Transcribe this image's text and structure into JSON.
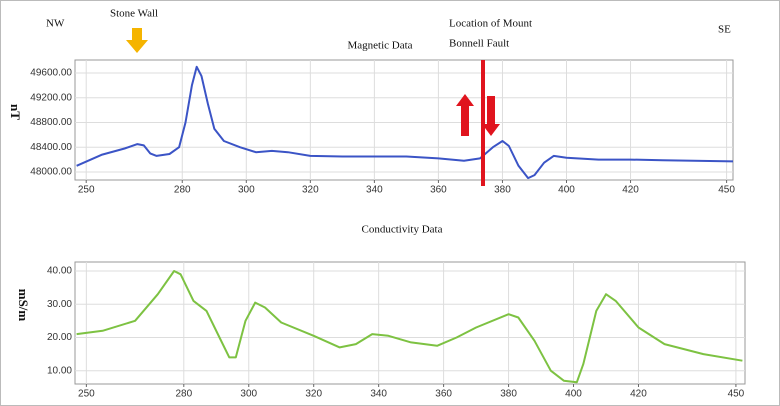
{
  "chart_data": [
    {
      "type": "line",
      "title": "Magnetic Data",
      "ylabel": "nT",
      "annotations": [
        "NW",
        "Stone Wall",
        "Location of Mount",
        "Bonnell Fault",
        "SE"
      ],
      "color": "#3b54c6",
      "grid": true,
      "x": [
        247,
        255,
        262,
        266,
        268,
        270,
        272,
        276,
        279,
        281,
        283,
        284.5,
        286,
        288,
        290,
        293,
        298,
        303,
        308,
        313,
        320,
        330,
        350,
        360,
        368,
        373,
        377,
        380,
        382,
        385,
        388,
        390,
        393,
        396,
        400,
        410,
        420,
        430,
        452
      ],
      "values": [
        48100,
        48280,
        48380,
        48450,
        48430,
        48300,
        48260,
        48290,
        48400,
        48800,
        49400,
        49700,
        49550,
        49100,
        48700,
        48500,
        48400,
        48320,
        48340,
        48320,
        48260,
        48250,
        48250,
        48220,
        48180,
        48220,
        48400,
        48500,
        48420,
        48100,
        47900,
        47950,
        48150,
        48260,
        48230,
        48200,
        48200,
        48190,
        48170
      ],
      "xlim": [
        246.5,
        452
      ],
      "xticks": [
        250,
        280,
        300,
        320,
        340,
        360,
        380,
        400,
        420,
        450
      ],
      "ylim": [
        47870,
        49810
      ],
      "yticks": [
        {
          "value": 48000,
          "label": "48000.00"
        },
        {
          "value": 48400,
          "label": "48400.00"
        },
        {
          "value": 48800,
          "label": "48800.00"
        },
        {
          "value": 49200,
          "label": "49200.00"
        },
        {
          "value": 49600,
          "label": "49600.00"
        }
      ]
    },
    {
      "type": "line",
      "title": "Conductivity Data",
      "ylabel": "mS/m",
      "color": "#7dc242",
      "grid": true,
      "x": [
        247,
        255,
        265,
        272,
        277,
        279,
        283,
        287,
        291,
        294,
        296,
        299,
        302,
        305,
        310,
        320,
        328,
        333,
        338,
        343,
        350,
        358,
        364,
        370,
        380,
        383,
        388,
        393,
        397,
        401,
        403,
        407,
        410,
        413,
        420,
        428,
        440,
        452
      ],
      "values": [
        21,
        22,
        25,
        33,
        40,
        39,
        31,
        28,
        20,
        14,
        14,
        25,
        30.5,
        29,
        24.5,
        20.5,
        17,
        18,
        21,
        20.5,
        18.5,
        17.5,
        20,
        23,
        27,
        26,
        19,
        10,
        7,
        6.5,
        12,
        28,
        33,
        31,
        23,
        18,
        15,
        13
      ],
      "xlim": [
        246.5,
        452.8
      ],
      "xticks": [
        250,
        280,
        300,
        320,
        340,
        360,
        380,
        400,
        420,
        450
      ],
      "ylim": [
        6,
        42.7
      ],
      "yticks": [
        {
          "value": 10,
          "label": "10.00"
        },
        {
          "value": 20,
          "label": "20.00"
        },
        {
          "value": 30,
          "label": "30.00"
        },
        {
          "value": 40,
          "label": "40.00"
        }
      ]
    }
  ]
}
